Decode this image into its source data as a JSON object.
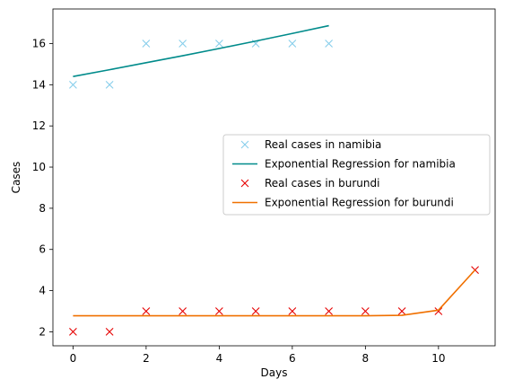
{
  "chart_data": {
    "type": "scatter",
    "title": "",
    "xlabel": "Days",
    "ylabel": "Cases",
    "xlim": [
      -0.55,
      11.55
    ],
    "ylim": [
      1.32,
      17.68
    ],
    "xticks": [
      0,
      2,
      4,
      6,
      8,
      10
    ],
    "yticks": [
      2,
      4,
      6,
      8,
      10,
      12,
      14,
      16
    ],
    "grid": false,
    "legend_position": "center-right",
    "series": [
      {
        "name": "Real cases in namibia",
        "kind": "marker",
        "marker": "x",
        "color": "#87CEEB",
        "x": [
          0,
          1,
          2,
          3,
          4,
          5,
          6,
          7
        ],
        "y": [
          14,
          14,
          16,
          16,
          16,
          16,
          16,
          16
        ]
      },
      {
        "name": "Exponential Regression for namibia",
        "kind": "line",
        "color": "#008B8B",
        "x": [
          0,
          1,
          2,
          3,
          4,
          5,
          6,
          7
        ],
        "y": [
          14.4,
          14.73,
          15.07,
          15.41,
          15.76,
          16.12,
          16.49,
          16.87
        ]
      },
      {
        "name": "Real cases in burundi",
        "kind": "marker",
        "marker": "x",
        "color": "#E60000",
        "x": [
          0,
          1,
          2,
          3,
          4,
          5,
          6,
          7,
          8,
          9,
          10,
          11
        ],
        "y": [
          2,
          2,
          3,
          3,
          3,
          3,
          3,
          3,
          3,
          3,
          3,
          5
        ]
      },
      {
        "name": "Exponential Regression for burundi",
        "kind": "line",
        "color": "#F07000",
        "x": [
          0,
          1,
          2,
          3,
          4,
          5,
          6,
          7,
          8,
          9,
          10,
          11
        ],
        "y": [
          2.78,
          2.78,
          2.78,
          2.78,
          2.78,
          2.78,
          2.78,
          2.78,
          2.78,
          2.8,
          3.05,
          5.0
        ]
      }
    ]
  }
}
